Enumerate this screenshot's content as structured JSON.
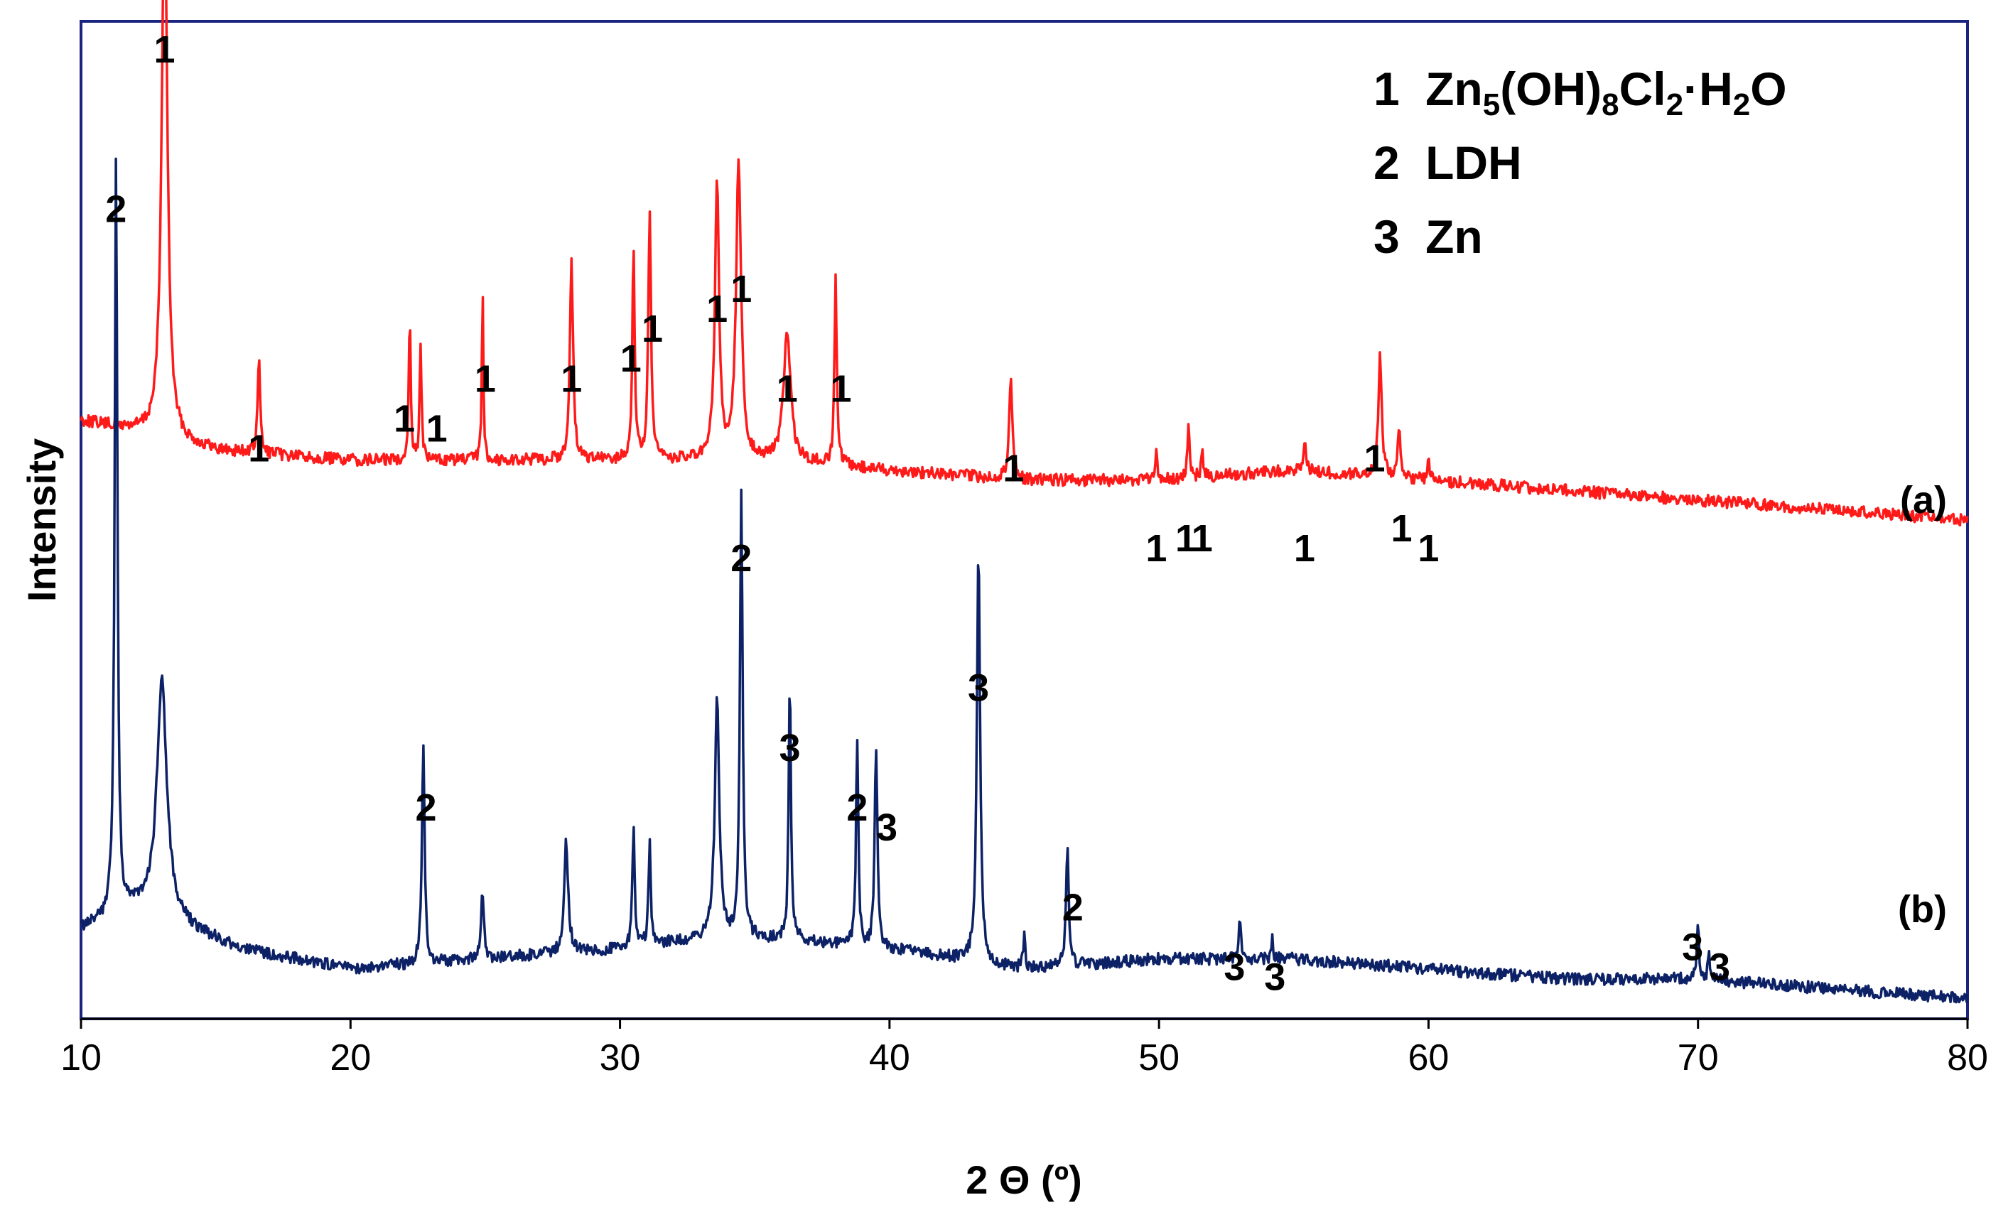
{
  "chart_data": {
    "type": "line",
    "title": "",
    "xlabel": "2 Θ (º)",
    "ylabel": "Intensity",
    "xlim": [
      10,
      80
    ],
    "x_ticks": [
      "10",
      "20",
      "30",
      "40",
      "50",
      "60",
      "70",
      "80"
    ],
    "colors": {
      "a": "#ff1a1a",
      "b": "#0d2266",
      "frame": "#1a237e"
    },
    "legend": [
      {
        "num": "1",
        "text": "Zn",
        "sub1": "5",
        "mid1": "(OH)",
        "sub2": "8",
        "mid2": "Cl",
        "sub3": "2",
        "mid3": "·H",
        "sub4": "2",
        "tail": "O"
      },
      {
        "num": "2",
        "text": "LDH"
      },
      {
        "num": "3",
        "text": "Zn"
      }
    ],
    "series": [
      {
        "name": "(a)",
        "label": "(a)",
        "baseline": [
          [
            10,
            0.4
          ],
          [
            12,
            0.41
          ],
          [
            15,
            0.43
          ],
          [
            20,
            0.44
          ],
          [
            25,
            0.44
          ],
          [
            30,
            0.44
          ],
          [
            33,
            0.44
          ],
          [
            36,
            0.44
          ],
          [
            40,
            0.45
          ],
          [
            45,
            0.46
          ],
          [
            50,
            0.46
          ],
          [
            55,
            0.45
          ],
          [
            60,
            0.46
          ],
          [
            65,
            0.47
          ],
          [
            70,
            0.48
          ],
          [
            75,
            0.49
          ],
          [
            80,
            0.5
          ]
        ],
        "peaks": [
          [
            13.1,
            0.55,
            0.25
          ],
          [
            16.6,
            0.1,
            0.1
          ],
          [
            22.2,
            0.14,
            0.09
          ],
          [
            22.6,
            0.12,
            0.08
          ],
          [
            24.9,
            0.17,
            0.07
          ],
          [
            28.2,
            0.2,
            0.14
          ],
          [
            30.5,
            0.22,
            0.1
          ],
          [
            31.1,
            0.25,
            0.12
          ],
          [
            33.6,
            0.28,
            0.18
          ],
          [
            34.4,
            0.3,
            0.22
          ],
          [
            36.2,
            0.13,
            0.3
          ],
          [
            38.0,
            0.19,
            0.1
          ],
          [
            44.5,
            0.1,
            0.15
          ],
          [
            49.9,
            0.03,
            0.08
          ],
          [
            51.1,
            0.05,
            0.1
          ],
          [
            51.6,
            0.03,
            0.08
          ],
          [
            55.4,
            0.03,
            0.1
          ],
          [
            58.2,
            0.12,
            0.15
          ],
          [
            58.9,
            0.05,
            0.12
          ],
          [
            60.0,
            0.02,
            0.1
          ]
        ]
      },
      {
        "name": "(b)",
        "label": "(b)",
        "baseline": [
          [
            10,
            0.91
          ],
          [
            12,
            0.89
          ],
          [
            14,
            0.91
          ],
          [
            16,
            0.93
          ],
          [
            20,
            0.95
          ],
          [
            25,
            0.94
          ],
          [
            30,
            0.93
          ],
          [
            33,
            0.92
          ],
          [
            36,
            0.92
          ],
          [
            40,
            0.93
          ],
          [
            45,
            0.95
          ],
          [
            50,
            0.94
          ],
          [
            55,
            0.94
          ],
          [
            60,
            0.95
          ],
          [
            65,
            0.96
          ],
          [
            70,
            0.96
          ],
          [
            75,
            0.97
          ],
          [
            80,
            0.98
          ]
        ],
        "peaks": [
          [
            11.3,
            0.76,
            0.12
          ],
          [
            13.0,
            0.24,
            0.45
          ],
          [
            22.7,
            0.22,
            0.12
          ],
          [
            24.9,
            0.07,
            0.12
          ],
          [
            28.0,
            0.11,
            0.18
          ],
          [
            30.5,
            0.12,
            0.1
          ],
          [
            31.1,
            0.1,
            0.1
          ],
          [
            33.6,
            0.24,
            0.2
          ],
          [
            34.5,
            0.45,
            0.12
          ],
          [
            36.3,
            0.26,
            0.1
          ],
          [
            38.8,
            0.21,
            0.1
          ],
          [
            39.5,
            0.2,
            0.12
          ],
          [
            43.3,
            0.42,
            0.14
          ],
          [
            45.0,
            0.04,
            0.08
          ],
          [
            46.6,
            0.12,
            0.12
          ],
          [
            53.0,
            0.04,
            0.1
          ],
          [
            54.2,
            0.02,
            0.08
          ],
          [
            70.0,
            0.05,
            0.1
          ],
          [
            70.4,
            0.03,
            0.08
          ]
        ]
      }
    ],
    "peak_labels": [
      {
        "x": 13.1,
        "row": 0.0,
        "text": "1"
      },
      {
        "x": 11.3,
        "row": 0.16,
        "text": "2"
      },
      {
        "x": 16.6,
        "row": 0.4,
        "text": "1"
      },
      {
        "x": 22.0,
        "row": 0.37,
        "text": "1"
      },
      {
        "x": 23.2,
        "row": 0.38,
        "text": "1"
      },
      {
        "x": 25.0,
        "row": 0.33,
        "text": "1"
      },
      {
        "x": 28.2,
        "row": 0.33,
        "text": "1"
      },
      {
        "x": 30.4,
        "row": 0.31,
        "text": "1"
      },
      {
        "x": 31.2,
        "row": 0.28,
        "text": "1"
      },
      {
        "x": 33.6,
        "row": 0.26,
        "text": "1"
      },
      {
        "x": 34.5,
        "row": 0.24,
        "text": "1"
      },
      {
        "x": 36.2,
        "row": 0.34,
        "text": "1"
      },
      {
        "x": 38.2,
        "row": 0.34,
        "text": "1"
      },
      {
        "x": 44.6,
        "row": 0.42,
        "text": "1"
      },
      {
        "x": 49.9,
        "row": 0.5,
        "text": "1"
      },
      {
        "x": 51.0,
        "row": 0.49,
        "text": "1"
      },
      {
        "x": 51.6,
        "row": 0.49,
        "text": "1"
      },
      {
        "x": 55.4,
        "row": 0.5,
        "text": "1"
      },
      {
        "x": 58.0,
        "row": 0.41,
        "text": "1"
      },
      {
        "x": 59.0,
        "row": 0.48,
        "text": "1"
      },
      {
        "x": 60.0,
        "row": 0.5,
        "text": "1"
      },
      {
        "x": 34.5,
        "row": 0.51,
        "text": "2"
      },
      {
        "x": 36.3,
        "row": 0.7,
        "text": "3"
      },
      {
        "x": 22.8,
        "row": 0.76,
        "text": "2"
      },
      {
        "x": 38.8,
        "row": 0.76,
        "text": "2"
      },
      {
        "x": 39.9,
        "row": 0.78,
        "text": "3"
      },
      {
        "x": 43.3,
        "row": 0.64,
        "text": "3"
      },
      {
        "x": 46.8,
        "row": 0.86,
        "text": "2"
      },
      {
        "x": 52.8,
        "row": 0.92,
        "text": "3"
      },
      {
        "x": 54.3,
        "row": 0.93,
        "text": "3"
      },
      {
        "x": 69.8,
        "row": 0.9,
        "text": "3"
      },
      {
        "x": 70.8,
        "row": 0.92,
        "text": "3"
      }
    ]
  }
}
